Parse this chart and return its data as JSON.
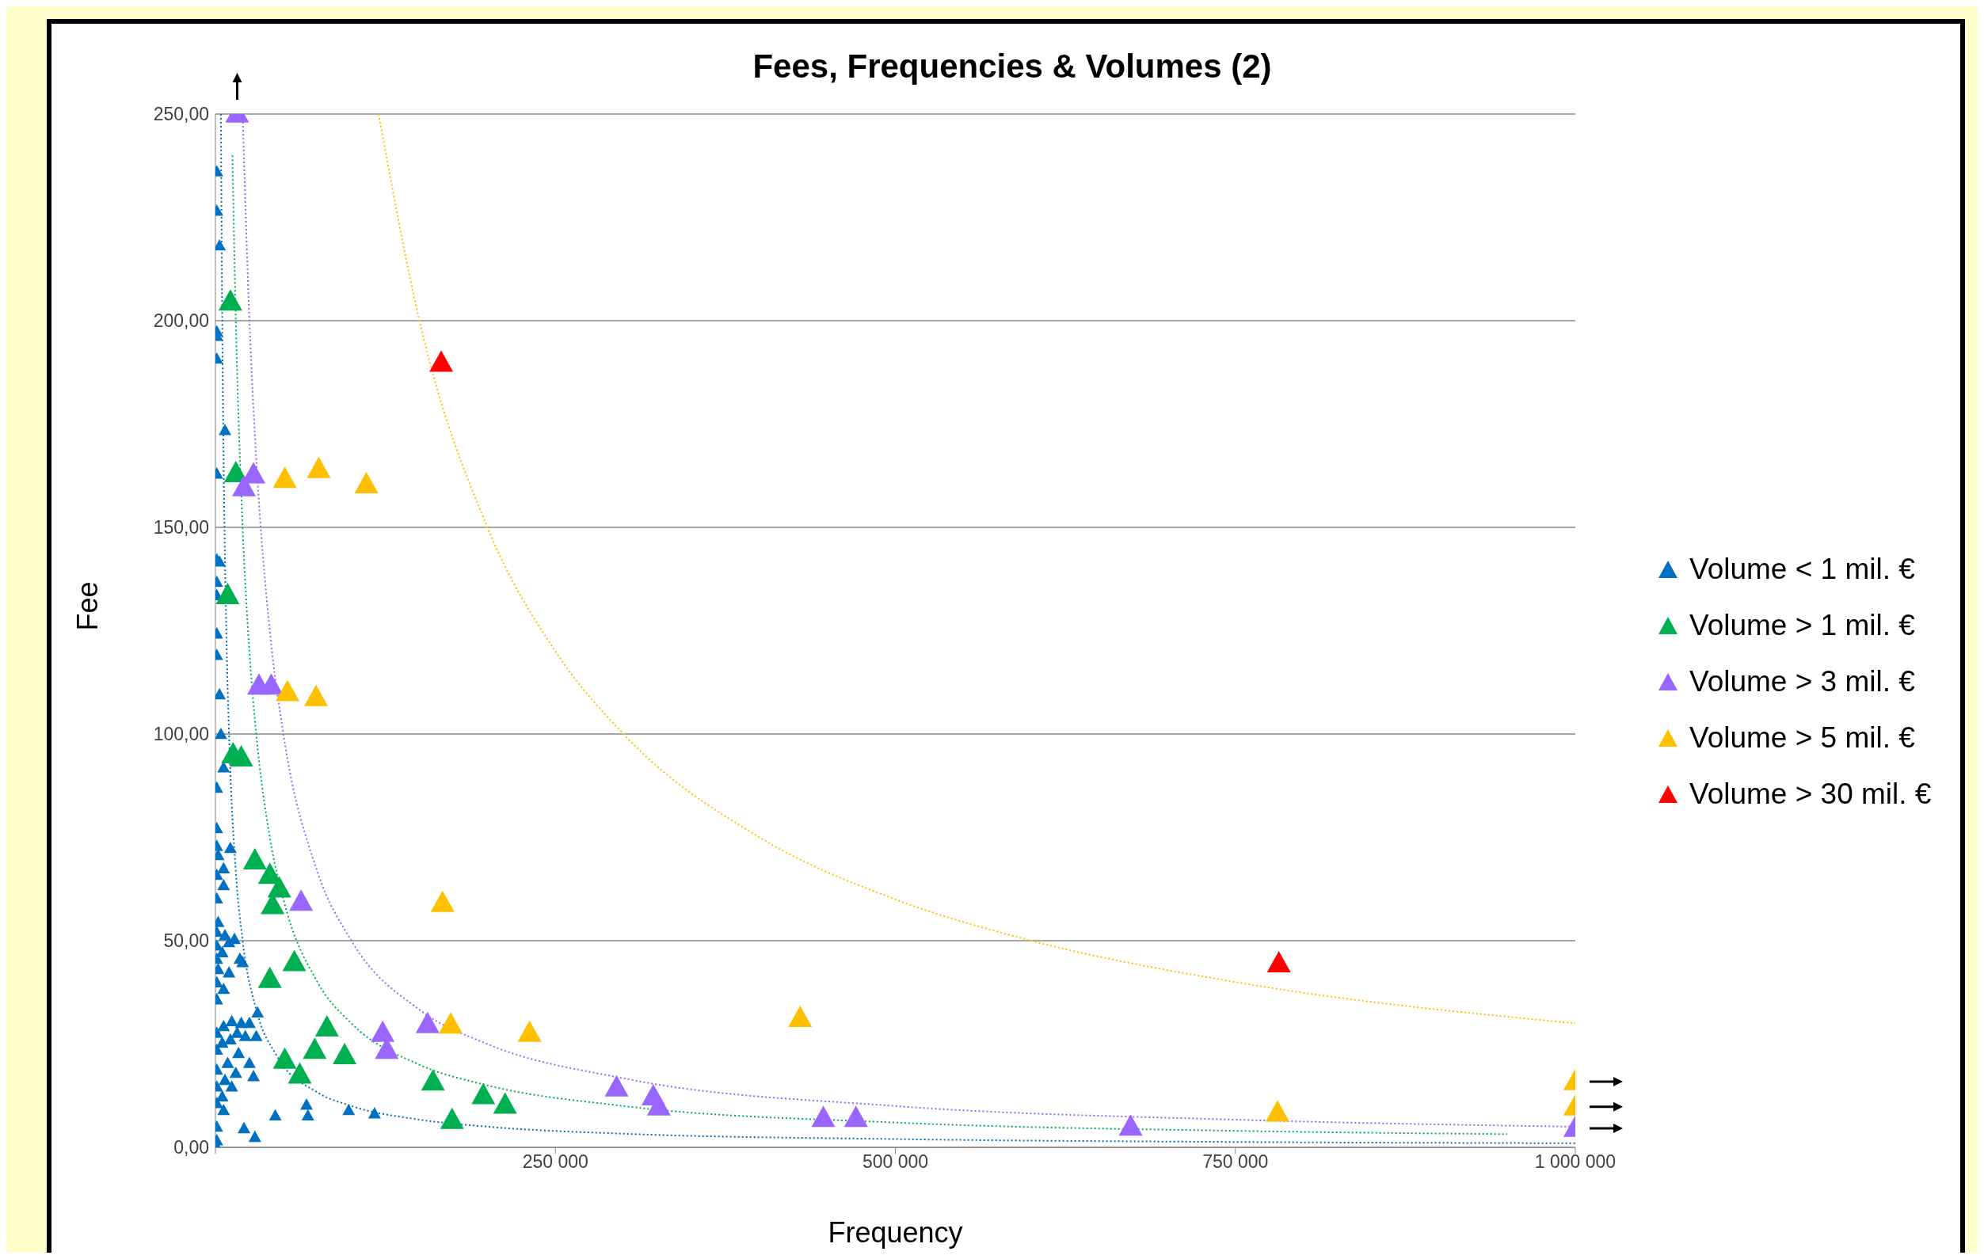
{
  "chart_data": {
    "type": "scatter",
    "title": "Fees, Frequencies & Volumes (2)",
    "xlabel": "Frequency",
    "ylabel": "Fee",
    "xlim": [
      0,
      1000000
    ],
    "xticks": [
      {
        "value": 0,
        "label": null
      },
      {
        "value": 250000,
        "label": "250 000"
      },
      {
        "value": 500000,
        "label": "500 000"
      },
      {
        "value": 750000,
        "label": "750 000"
      },
      {
        "value": 1000000,
        "label": "1 000 000"
      }
    ],
    "ylim": [
      0,
      250
    ],
    "yticks": [
      {
        "value": 0,
        "label": "0,00"
      },
      {
        "value": 50,
        "label": "50,00"
      },
      {
        "value": 100,
        "label": "100,00"
      },
      {
        "value": 150,
        "label": "150,00"
      },
      {
        "value": 200,
        "label": "200,00"
      },
      {
        "value": 250,
        "label": "250,00"
      }
    ],
    "grid": "y",
    "legend": "right",
    "marker": "triangle",
    "series": [
      {
        "name": "Volume < 1 mil. €",
        "color": "#0070c0",
        "x": [
          1000,
          1000,
          3000,
          1000,
          1000,
          1000,
          7000,
          1000,
          1000,
          3000,
          1000,
          1000,
          1000,
          1000,
          3000,
          4000,
          6000,
          1000,
          1000,
          1000,
          11000,
          2000,
          6000,
          1000,
          6000,
          1000,
          2000,
          1000,
          7000,
          14000,
          1000,
          10000,
          5000,
          1000,
          18000,
          20000,
          2000,
          10000,
          1000,
          6000,
          1000,
          31000,
          12000,
          19000,
          25000,
          6000,
          1000,
          16000,
          22000,
          30000,
          11000,
          5000,
          1000,
          17000,
          25000,
          9000,
          1000,
          15000,
          28000,
          7000,
          1000,
          12000,
          5000,
          1000,
          67000,
          98000,
          6000,
          117000,
          68000,
          44000,
          21000,
          1000,
          29000,
          1000,
          1000
        ],
        "values": [
          236.0,
          226.5,
          218.1,
          197.3,
          196.2,
          190.7,
          173.4,
          162.9,
          142.1,
          141.6,
          136.7,
          133.5,
          124.2,
          119.0,
          109.5,
          99.9,
          91.8,
          86.9,
          77.1,
          72.8,
          72.3,
          70.6,
          67.4,
          65.8,
          63.3,
          60.1,
          54.4,
          52.0,
          51.2,
          50.3,
          48.7,
          49.5,
          47.1,
          45.5,
          45.5,
          44.7,
          43.0,
          42.2,
          39.8,
          38.2,
          35.7,
          32.5,
          30.4,
          30.0,
          30.0,
          29.2,
          27.6,
          27.6,
          26.8,
          26.8,
          26.0,
          25.2,
          23.5,
          22.7,
          20.3,
          20.3,
          18.7,
          17.9,
          17.1,
          16.2,
          14.6,
          14.6,
          12.2,
          10.6,
          10.2,
          8.9,
          8.9,
          8.1,
          7.6,
          7.6,
          4.5,
          4.9,
          2.4,
          1.6,
          0
        ]
      },
      {
        "name": "Volume > 1 mil. €",
        "color": "#00b050",
        "x": [
          11000,
          15000,
          9000,
          13000,
          19000,
          29000,
          40000,
          47000,
          42000,
          58000,
          40000,
          82000,
          73000,
          95000,
          51000,
          62000,
          160000,
          197000,
          213000,
          174000
        ],
        "values": [
          204.5,
          163.0,
          133.5,
          95.0,
          94.2,
          69.3,
          65.8,
          62.5,
          58.5,
          44.7,
          40.6,
          28.9,
          23.5,
          22.2,
          21.1,
          17.5,
          15.8,
          12.5,
          10.2,
          6.5
        ]
      },
      {
        "name": "Volume > 3 mil. €",
        "color": "#9966ff",
        "x": [
          16000,
          28000,
          21000,
          32000,
          41000,
          63000,
          123000,
          126000,
          156000,
          295000,
          322000,
          326000,
          447000,
          471000,
          673000,
          1000000
        ],
        "values": [
          250,
          162.7,
          159.6,
          111.6,
          111.6,
          59.3,
          27.6,
          23.5,
          29.7,
          14.4,
          12.2,
          9.8,
          7.0,
          7.0,
          4.9,
          4.6
        ]
      },
      {
        "name": "Volume > 5 mil. €",
        "color": "#ffc000",
        "x": [
          51000,
          76000,
          111000,
          53000,
          74000,
          167000,
          173000,
          231000,
          430000,
          781000,
          1000000,
          1000000
        ],
        "values": [
          161.6,
          164.0,
          160.3,
          110.0,
          108.8,
          59.0,
          29.6,
          27.6,
          31.2,
          8.3,
          15.9,
          9.8
        ]
      },
      {
        "name": "Volume > 30 mil. €",
        "color": "#ff0000",
        "x": [
          166000,
          782000
        ],
        "values": [
          189.7,
          44.4
        ]
      },
      {
        "type": "line",
        "color": "#0070c0",
        "line_style": "dotted",
        "marker": "none",
        "x": [
          4000,
          5000,
          6000,
          8000,
          10000,
          15000,
          20000,
          30000,
          45000,
          75000,
          100000,
          150000,
          200000,
          300000,
          500000,
          750000,
          1000000
        ],
        "values": [
          250,
          200,
          166.7,
          125,
          100,
          66.7,
          50,
          33.3,
          22.2,
          13.3,
          10,
          6.7,
          5,
          3.3,
          2,
          1.3,
          1
        ]
      },
      {
        "type": "line",
        "color": "#00b050",
        "line_style": "dotted",
        "marker": "none",
        "x": [
          12500,
          15000,
          20000,
          25000,
          30000,
          40000,
          50000,
          75000,
          100000,
          150000,
          200000,
          300000,
          500000,
          750000,
          950000
        ],
        "values": [
          240,
          200,
          150,
          120,
          100,
          75,
          60,
          40,
          30,
          20,
          15,
          10,
          6,
          4,
          3.2
        ]
      },
      {
        "type": "line",
        "color": "#9966ff",
        "line_style": "dotted",
        "marker": "none",
        "x": [
          20000,
          25000,
          30000,
          40000,
          50000,
          75000,
          100000,
          150000,
          200000,
          300000,
          500000,
          750000,
          1000000
        ],
        "values": [
          250,
          200,
          166.7,
          125,
          100,
          66.7,
          50,
          33.3,
          25,
          16.7,
          10,
          6.7,
          5
        ]
      },
      {
        "type": "line",
        "color": "#ffc000",
        "line_style": "dotted",
        "marker": "none",
        "x": [
          120000,
          150000,
          200000,
          250000,
          300000,
          400000,
          500000,
          600000,
          750000,
          1000000
        ],
        "values": [
          250,
          200,
          150,
          120,
          100,
          75,
          60,
          50,
          40,
          30
        ]
      }
    ]
  }
}
